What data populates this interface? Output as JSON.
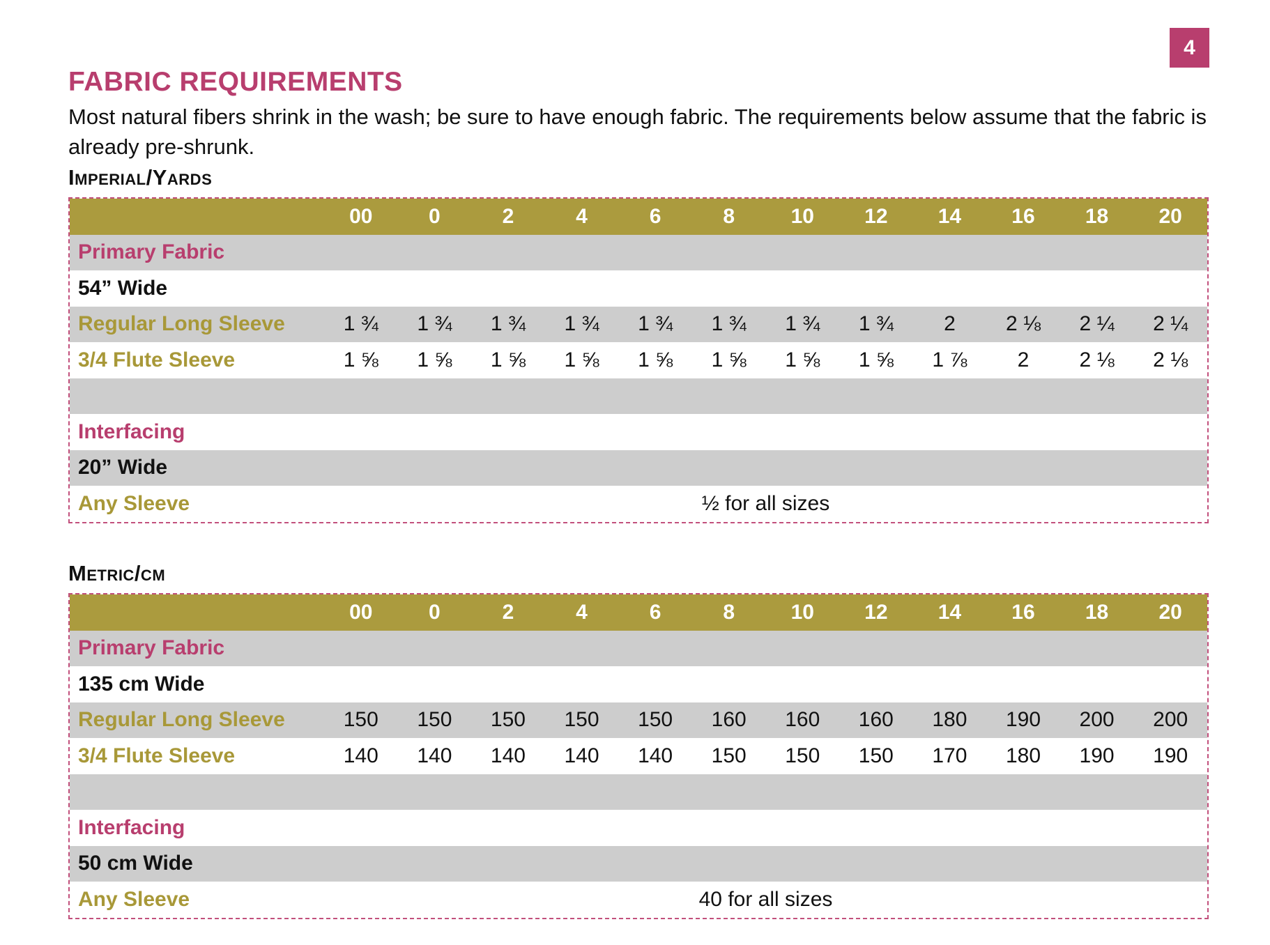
{
  "page_number": "4",
  "heading": "FABRIC REQUIREMENTS",
  "intro": "Most natural fibers shrink in the wash; be sure to have enough fabric. The requirements below assume that the fabric is already pre-shrunk.",
  "colors": {
    "accent_pink": "#b83e6e",
    "accent_olive": "#ab9b3e",
    "row_gray": "#cdcdcd"
  },
  "imperial": {
    "title": "Imperial/Yards",
    "sizes": [
      "00",
      "0",
      "2",
      "4",
      "6",
      "8",
      "10",
      "12",
      "14",
      "16",
      "18",
      "20"
    ],
    "primary_label": "Primary Fabric",
    "width_label": "54” Wide",
    "rows": [
      {
        "label": "Regular Long Sleeve",
        "values": [
          "1 ¾",
          "1 ¾",
          "1 ¾",
          "1 ¾",
          "1 ¾",
          "1 ¾",
          "1 ¾",
          "1 ¾",
          "2",
          "2 ⅛",
          "2 ¼",
          "2 ¼"
        ]
      },
      {
        "label": "3/4 Flute Sleeve",
        "values": [
          "1 ⅝",
          "1 ⅝",
          "1 ⅝",
          "1 ⅝",
          "1 ⅝",
          "1 ⅝",
          "1 ⅝",
          "1 ⅝",
          "1 ⅞",
          "2",
          "2 ⅛",
          "2 ⅛"
        ]
      }
    ],
    "interfacing_label": "Interfacing",
    "interfacing_width_label": "20” Wide",
    "any_sleeve_label": "Any Sleeve",
    "any_sleeve_value": "½ for all sizes"
  },
  "metric": {
    "title": "Metric/cm",
    "sizes": [
      "00",
      "0",
      "2",
      "4",
      "6",
      "8",
      "10",
      "12",
      "14",
      "16",
      "18",
      "20"
    ],
    "primary_label": "Primary Fabric",
    "width_label": "135 cm Wide",
    "rows": [
      {
        "label": "Regular Long Sleeve",
        "values": [
          "150",
          "150",
          "150",
          "150",
          "150",
          "160",
          "160",
          "160",
          "180",
          "190",
          "200",
          "200"
        ]
      },
      {
        "label": "3/4 Flute Sleeve",
        "values": [
          "140",
          "140",
          "140",
          "140",
          "140",
          "150",
          "150",
          "150",
          "170",
          "180",
          "190",
          "190"
        ]
      }
    ],
    "interfacing_label": "Interfacing",
    "interfacing_width_label": "50 cm Wide",
    "any_sleeve_label": "Any Sleeve",
    "any_sleeve_value": "40 for all sizes"
  }
}
